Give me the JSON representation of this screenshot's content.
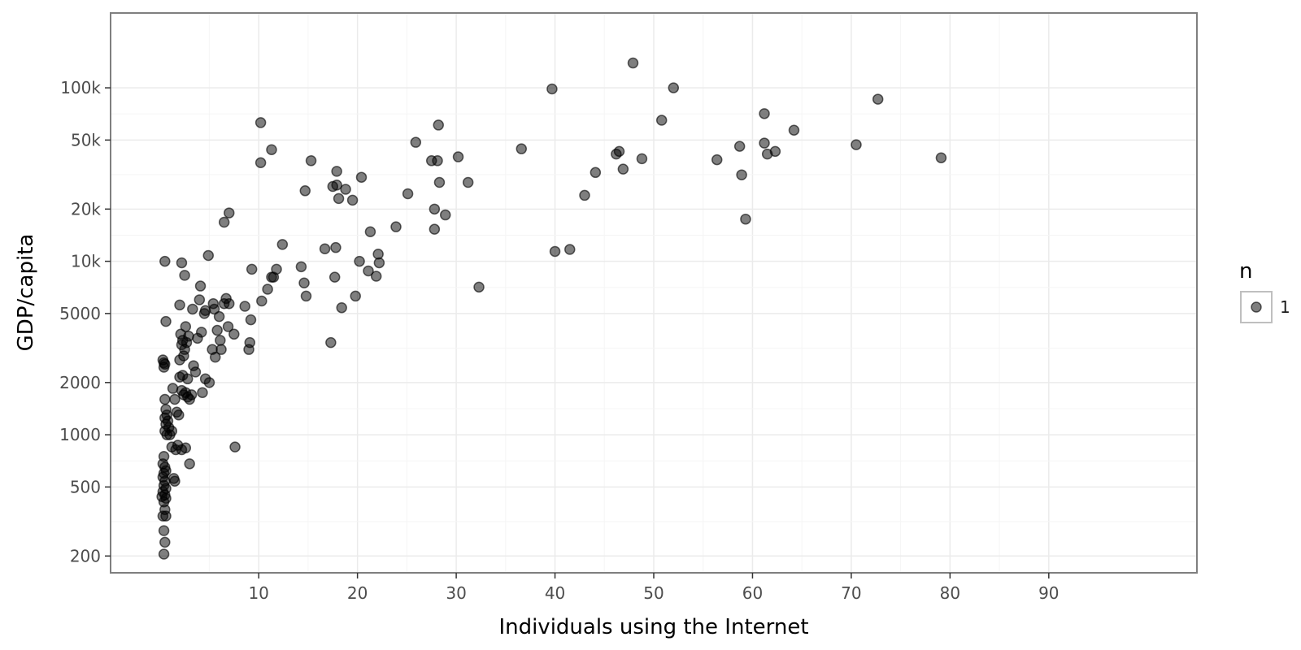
{
  "chart_data": {
    "type": "scatter",
    "title": "",
    "xlabel": "Individuals using the Internet",
    "ylabel": "GDP/capita",
    "x_ticks": [
      10,
      20,
      30,
      40,
      50,
      60,
      70,
      80,
      90
    ],
    "x_tick_labels": [
      "10",
      "20",
      "30",
      "40",
      "50",
      "60",
      "70",
      "80",
      "90"
    ],
    "xlim": [
      -5,
      105
    ],
    "y_scale": "log",
    "y_ticks": [
      200,
      500,
      1000,
      2000,
      5000,
      10000,
      20000,
      50000,
      100000
    ],
    "y_tick_labels": [
      "200",
      "500",
      "1000",
      "2000",
      "5000",
      "10k",
      "20k",
      "50k",
      "100k"
    ],
    "ylim": [
      160,
      270000
    ],
    "grid": true,
    "point_color": "#000000",
    "point_alpha": 0.5,
    "legend": {
      "title": "n",
      "entries": [
        "1"
      ],
      "position": "right"
    },
    "series": [
      {
        "points": [
          [
            0.3,
            2700
          ],
          [
            0.4,
            2600
          ],
          [
            0.5,
            2550
          ],
          [
            0.4,
            2450
          ],
          [
            0.5,
            10000
          ],
          [
            0.6,
            4500
          ],
          [
            0.5,
            1600
          ],
          [
            0.6,
            1400
          ],
          [
            0.7,
            1300
          ],
          [
            0.5,
            1250
          ],
          [
            0.8,
            1200
          ],
          [
            0.6,
            1150
          ],
          [
            0.9,
            1100
          ],
          [
            0.5,
            1050
          ],
          [
            0.7,
            1000
          ],
          [
            1.0,
            1000
          ],
          [
            1.2,
            1050
          ],
          [
            0.4,
            750
          ],
          [
            0.3,
            680
          ],
          [
            0.5,
            650
          ],
          [
            0.6,
            620
          ],
          [
            0.4,
            600
          ],
          [
            0.3,
            570
          ],
          [
            0.5,
            540
          ],
          [
            0.4,
            510
          ],
          [
            0.6,
            490
          ],
          [
            0.3,
            470
          ],
          [
            0.5,
            450
          ],
          [
            0.2,
            440
          ],
          [
            0.6,
            430
          ],
          [
            0.4,
            410
          ],
          [
            0.5,
            370
          ],
          [
            0.3,
            340
          ],
          [
            0.6,
            340
          ],
          [
            0.4,
            280
          ],
          [
            0.5,
            240
          ],
          [
            0.4,
            205
          ],
          [
            1.4,
            560
          ],
          [
            1.5,
            540
          ],
          [
            1.2,
            850
          ],
          [
            1.8,
            870
          ],
          [
            1.6,
            820
          ],
          [
            2.2,
            820
          ],
          [
            2.6,
            840
          ],
          [
            3.0,
            680
          ],
          [
            1.3,
            1850
          ],
          [
            1.5,
            1600
          ],
          [
            1.7,
            1350
          ],
          [
            1.9,
            1300
          ],
          [
            2.0,
            2150
          ],
          [
            2.2,
            1800
          ],
          [
            2.4,
            1700
          ],
          [
            2.6,
            1750
          ],
          [
            2.8,
            1650
          ],
          [
            3.0,
            1600
          ],
          [
            3.2,
            1700
          ],
          [
            2.0,
            5600
          ],
          [
            2.1,
            3800
          ],
          [
            2.3,
            3500
          ],
          [
            2.2,
            3300
          ],
          [
            2.5,
            3100
          ],
          [
            2.0,
            2700
          ],
          [
            2.4,
            2850
          ],
          [
            2.7,
            3400
          ],
          [
            2.9,
            3700
          ],
          [
            3.4,
            2500
          ],
          [
            3.6,
            2300
          ],
          [
            2.8,
            2100
          ],
          [
            2.3,
            2200
          ],
          [
            2.6,
            4200
          ],
          [
            3.3,
            5300
          ],
          [
            2.2,
            9800
          ],
          [
            2.5,
            8300
          ],
          [
            3.8,
            3600
          ],
          [
            4.2,
            3900
          ],
          [
            4.5,
            5000
          ],
          [
            4.6,
            5200
          ],
          [
            4.0,
            6000
          ],
          [
            4.1,
            7200
          ],
          [
            4.3,
            1750
          ],
          [
            4.6,
            2100
          ],
          [
            5.0,
            2000
          ],
          [
            5.3,
            3100
          ],
          [
            5.6,
            2800
          ],
          [
            5.8,
            4000
          ],
          [
            5.5,
            5300
          ],
          [
            5.4,
            5700
          ],
          [
            6.0,
            4800
          ],
          [
            6.1,
            3500
          ],
          [
            6.2,
            3100
          ],
          [
            6.5,
            5700
          ],
          [
            6.7,
            6100
          ],
          [
            7.0,
            5700
          ],
          [
            6.9,
            4200
          ],
          [
            7.5,
            3800
          ],
          [
            4.9,
            10800
          ],
          [
            6.5,
            16800
          ],
          [
            7.0,
            19000
          ],
          [
            7.6,
            850
          ],
          [
            8.6,
            5500
          ],
          [
            9.2,
            4600
          ],
          [
            9.1,
            3400
          ],
          [
            9.0,
            3100
          ],
          [
            9.3,
            9000
          ],
          [
            10.3,
            5900
          ],
          [
            10.2,
            63000
          ],
          [
            10.2,
            37000
          ],
          [
            10.9,
            6900
          ],
          [
            11.3,
            8100
          ],
          [
            11.5,
            8100
          ],
          [
            11.3,
            44000
          ],
          [
            11.8,
            9000
          ],
          [
            12.4,
            12500
          ],
          [
            14.3,
            9300
          ],
          [
            14.6,
            7500
          ],
          [
            14.8,
            6300
          ],
          [
            14.7,
            25500
          ],
          [
            15.3,
            38000
          ],
          [
            16.7,
            11800
          ],
          [
            17.3,
            3400
          ],
          [
            17.5,
            27000
          ],
          [
            17.7,
            8100
          ],
          [
            17.8,
            12000
          ],
          [
            17.9,
            27500
          ],
          [
            17.9,
            33000
          ],
          [
            18.1,
            23000
          ],
          [
            18.4,
            5400
          ],
          [
            18.8,
            26000
          ],
          [
            19.5,
            22500
          ],
          [
            19.8,
            6300
          ],
          [
            20.2,
            10000
          ],
          [
            20.4,
            30500
          ],
          [
            21.1,
            8800
          ],
          [
            21.3,
            14800
          ],
          [
            21.9,
            8200
          ],
          [
            22.1,
            11000
          ],
          [
            22.2,
            9800
          ],
          [
            23.9,
            15800
          ],
          [
            25.1,
            24500
          ],
          [
            25.9,
            48500
          ],
          [
            27.5,
            38000
          ],
          [
            27.8,
            15300
          ],
          [
            27.8,
            20000
          ],
          [
            28.1,
            38000
          ],
          [
            28.2,
            61000
          ],
          [
            28.3,
            28500
          ],
          [
            28.9,
            18500
          ],
          [
            30.2,
            40000
          ],
          [
            31.2,
            28500
          ],
          [
            32.3,
            7100
          ],
          [
            36.6,
            44500
          ],
          [
            39.7,
            98500
          ],
          [
            40.0,
            11400
          ],
          [
            41.5,
            11700
          ],
          [
            43.0,
            24000
          ],
          [
            44.1,
            32500
          ],
          [
            46.2,
            41500
          ],
          [
            46.5,
            43000
          ],
          [
            46.9,
            34000
          ],
          [
            47.9,
            139000
          ],
          [
            48.8,
            39000
          ],
          [
            50.8,
            65000
          ],
          [
            52.0,
            100000
          ],
          [
            56.4,
            38500
          ],
          [
            58.7,
            46000
          ],
          [
            58.9,
            31500
          ],
          [
            59.3,
            17500
          ],
          [
            61.2,
            71000
          ],
          [
            61.2,
            48000
          ],
          [
            61.5,
            41500
          ],
          [
            62.3,
            43000
          ],
          [
            64.2,
            57000
          ],
          [
            70.5,
            47000
          ],
          [
            72.7,
            86000
          ],
          [
            79.1,
            39500
          ]
        ]
      }
    ]
  }
}
